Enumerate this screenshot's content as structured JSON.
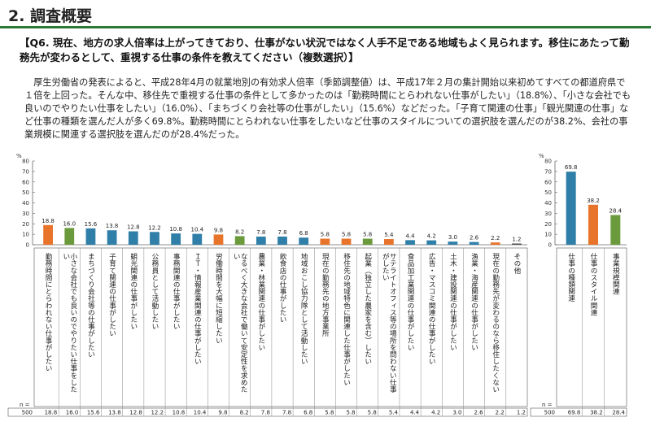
{
  "header": {
    "title": "2. 調査概要"
  },
  "question": "【Q6. 現在、地方の求人倍率は上がってきており、仕事がない状況ではなく人手不足である地域もよく見られます。移住にあたって勤務先が変わるとして、重視する仕事の条件を教えてください（複数選択）】",
  "body_text": "厚生労働省の発表によると、平成28年4月の就業地別の有効求人倍率（季節調整値）は、平成17年２月の集計開始以来初めてすべての都道府県で１倍を上回った。そんな中、移住先で重視する仕事の条件として多かったのは「勤務時間にとらわれない仕事がしたい」（18.8%）、「小さな会社でも良いのでやりたい仕事をしたい」（16.0%）、「まちづくり会社等の仕事がしたい」（15.6%）などだった。「子育て関連の仕事」「観光関連の仕事」など仕事の種類を選んだ人が多く69.8%。勤務時間にとらわれない仕事をしたいなど仕事のスタイルについての選択肢を選んだのが38.2%、会社の事業規模に関連する選択肢を選んだのが28.4%だった。",
  "chart_data": [
    {
      "type": "bar",
      "ylabel": "%",
      "ylim": [
        0,
        80
      ],
      "yticks": [
        0,
        10,
        20,
        30,
        40,
        50,
        60,
        70,
        80
      ],
      "n_label": "n =",
      "n_value": "500",
      "categories": [
        "勤務時間にとらわれない仕事がしたい",
        "小さな会社でも良いのでやりたい仕事をしたい",
        "まちづくり会社等の仕事がしたい",
        "子育て関連の仕事がしたい",
        "観光関連の仕事がしたい",
        "公務員として活動したい",
        "事務関連の仕事がしたい",
        "ＩＴ・情報産業関連の仕事がしたい",
        "労働時間を大幅に短縮したい",
        "なるべく大きな会社で働いて安定性を求めたい",
        "農業・林業関連の仕事がしたい",
        "飲食店の仕事がしたい",
        "地域おこし協力隊として活動したい",
        "現在の勤務先の地方事業所",
        "移住先の地域特色に関連した仕事がしたい",
        "起業（独立した農家を含む）したい",
        "サテライトオフィス等の場所を問わない仕事がしたい",
        "食品加工業関連の仕事がしたい",
        "広告・マスコミ関連の仕事がしたい",
        "土木・建設関連の仕事がしたい",
        "漁業・海産関連の仕事がしたい",
        "現在の勤務先が変わるのなら移住したくない",
        "その他"
      ],
      "values": [
        18.8,
        16.0,
        15.6,
        13.8,
        12.8,
        12.2,
        10.8,
        10.4,
        9.8,
        8.2,
        7.8,
        7.8,
        6.8,
        5.8,
        5.8,
        5.8,
        5.4,
        4.4,
        4.2,
        3.0,
        2.6,
        2.2,
        1.2
      ],
      "value_labels": [
        "18.8",
        "16.0",
        "15.6",
        "13.8",
        "12.8",
        "12.2",
        "10.8",
        "10.4",
        "9.8",
        "8.2",
        "7.8",
        "7.8",
        "6.8",
        "5.8",
        "5.8",
        "5.8",
        "5.4",
        "4.4",
        "4.2",
        "3.0",
        "2.6",
        "2.2",
        "1.2"
      ],
      "colors": [
        "#e8742c",
        "#6b9a3c",
        "#2f7fa8",
        "#2f7fa8",
        "#2f7fa8",
        "#2f7fa8",
        "#2f7fa8",
        "#2f7fa8",
        "#e8742c",
        "#6b9a3c",
        "#2f7fa8",
        "#2f7fa8",
        "#2f7fa8",
        "#e8742c",
        "#e8742c",
        "#6b9a3c",
        "#e8742c",
        "#2f7fa8",
        "#2f7fa8",
        "#2f7fa8",
        "#2f7fa8",
        "#e8742c",
        "#555555"
      ]
    },
    {
      "type": "bar",
      "ylabel": "%",
      "ylim": [
        0,
        80
      ],
      "yticks": [
        0,
        10,
        20,
        30,
        40,
        50,
        60,
        70,
        80
      ],
      "n_label": "n =",
      "n_value": "500",
      "categories": [
        "仕事の種類関連",
        "仕事のスタイル関連",
        "事業規模関連"
      ],
      "values": [
        69.8,
        38.2,
        28.4
      ],
      "value_labels": [
        "69.8",
        "38.2",
        "28.4"
      ],
      "colors": [
        "#2f7fa8",
        "#e8742c",
        "#6b9a3c"
      ]
    }
  ]
}
